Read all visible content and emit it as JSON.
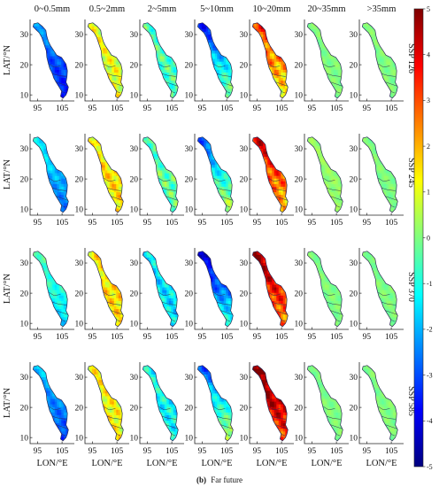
{
  "chart_data": {
    "type": "heatmap",
    "panel_layout": "grid",
    "columns": [
      "0~0.5mm",
      "0.5~2mm",
      "2~5mm",
      "5~10mm",
      "10~20mm",
      "20~35mm",
      ">35mm"
    ],
    "rows": [
      "SSP 126",
      "SSP 245",
      "SSP 370",
      "SSP 585"
    ],
    "ylabel": "LAT/°N",
    "xlabel": "LON/°E",
    "x_ticks": [
      95,
      105
    ],
    "y_ticks": [
      30,
      20,
      10
    ],
    "colorbar": {
      "range": [
        -5,
        5
      ],
      "ticks": [
        5,
        4,
        3,
        2,
        1,
        0,
        -1,
        -2,
        -3,
        -4,
        -5
      ],
      "colormap": "jet"
    },
    "panel_mean_values": [
      [
        -3.0,
        1.0,
        -0.5,
        -1.5,
        2.2,
        0.0,
        0.0
      ],
      [
        -2.0,
        1.5,
        -0.3,
        -1.0,
        2.8,
        0.2,
        0.0
      ],
      [
        -1.0,
        1.5,
        -1.5,
        -2.5,
        3.5,
        0.0,
        0.0
      ],
      [
        -2.5,
        1.2,
        -1.2,
        -1.0,
        4.2,
        0.0,
        0.0
      ]
    ],
    "caption": {
      "label": "(b)",
      "text": "Far future"
    }
  },
  "colors": {
    "outline": "#2a2a55",
    "jet_stops": [
      "#00007f",
      "#0000ff",
      "#007fff",
      "#00ffff",
      "#7fff7f",
      "#ffff00",
      "#ff7f00",
      "#ff0000",
      "#7f0000"
    ]
  }
}
